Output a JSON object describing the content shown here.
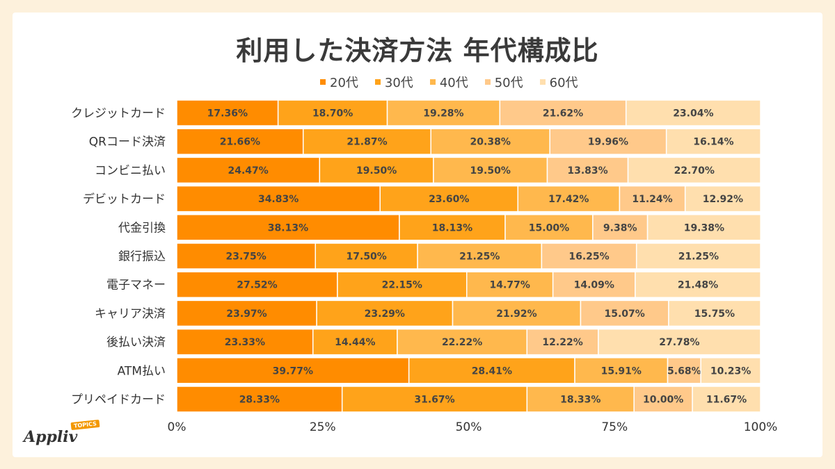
{
  "header": {
    "title": "利用した決済方法 年代構成比"
  },
  "colors": {
    "background": "#fdf1dc",
    "series": [
      "#ff8c00",
      "#ffa31a",
      "#ffb84d",
      "#ffc98a",
      "#ffdfae"
    ]
  },
  "logo": {
    "wordmark": "Appliv",
    "badge": "TOPICS"
  },
  "chart_data": {
    "type": "bar",
    "orientation": "horizontal",
    "stacked": true,
    "title": "利用した決済方法 年代構成比",
    "categories": [
      "クレジットカード",
      "QRコード決済",
      "コンビニ払い",
      "デビットカード",
      "代金引換",
      "銀行振込",
      "電子マネー",
      "キャリア決済",
      "後払い決済",
      "ATM払い",
      "プリペイドカード"
    ],
    "series": [
      {
        "name": "20代",
        "values": [
          17.36,
          21.66,
          24.47,
          34.83,
          38.13,
          23.75,
          27.52,
          23.97,
          23.33,
          39.77,
          28.33
        ]
      },
      {
        "name": "30代",
        "values": [
          18.7,
          21.87,
          19.5,
          23.6,
          18.13,
          17.5,
          22.15,
          23.29,
          14.44,
          28.41,
          31.67
        ]
      },
      {
        "name": "40代",
        "values": [
          19.28,
          20.38,
          19.5,
          17.42,
          15.0,
          21.25,
          14.77,
          21.92,
          22.22,
          15.91,
          18.33
        ]
      },
      {
        "name": "50代",
        "values": [
          21.62,
          19.96,
          13.83,
          11.24,
          9.38,
          16.25,
          14.09,
          15.07,
          12.22,
          5.68,
          10.0
        ]
      },
      {
        "name": "60代",
        "values": [
          23.04,
          16.14,
          22.7,
          12.92,
          19.38,
          21.25,
          21.48,
          15.75,
          27.78,
          10.23,
          11.67
        ]
      }
    ],
    "labels": [
      [
        "17.36%",
        "18.70%",
        "19.28%",
        "21.62%",
        "23.04%"
      ],
      [
        "21.66%",
        "21.87%",
        "20.38%",
        "19.96%",
        "16.14%"
      ],
      [
        "24.47%",
        "19.50%",
        "19.50%",
        "13.83%",
        "22.70%"
      ],
      [
        "34.83%",
        "23.60%",
        "17.42%",
        "11.24%",
        "12.92%"
      ],
      [
        "38.13%",
        "18.13%",
        "15.00%",
        "9.38%",
        "19.38%"
      ],
      [
        "23.75%",
        "17.50%",
        "21.25%",
        "16.25%",
        "21.25%"
      ],
      [
        "27.52%",
        "22.15%",
        "14.77%",
        "14.09%",
        "21.48%"
      ],
      [
        "23.97%",
        "23.29%",
        "21.92%",
        "15.07%",
        "15.75%"
      ],
      [
        "23.33%",
        "14.44%",
        "22.22%",
        "12.22%",
        "27.78%"
      ],
      [
        "39.77%",
        "28.41%",
        "15.91%",
        "5.68%",
        "10.23%"
      ],
      [
        "28.33%",
        "31.67%",
        "18.33%",
        "10.00%",
        "11.67%"
      ]
    ],
    "xlim": [
      0,
      100
    ],
    "xticks": [
      "0%",
      "25%",
      "50%",
      "75%",
      "100%"
    ],
    "legend_position": "top",
    "grid": false
  }
}
